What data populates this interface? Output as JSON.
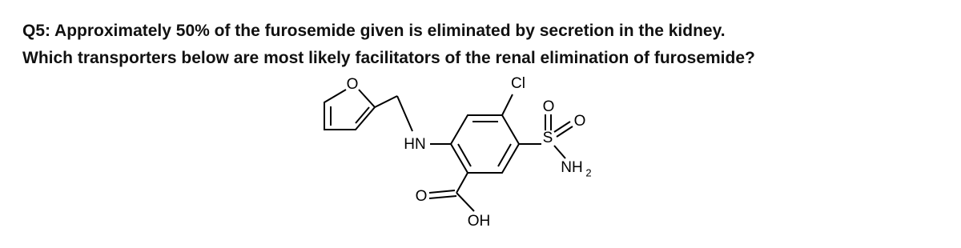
{
  "question": {
    "line1": "Q5: Approximately 50% of the furosemide given is eliminated by secretion in the kidney.",
    "line2": "Which transporters below are most likely facilitators of the renal elimination of furosemide?"
  },
  "structure": {
    "atoms": [
      "O",
      "Cl",
      "HN",
      "O",
      "S",
      "O",
      "NH",
      "2",
      "O",
      "OH"
    ]
  }
}
